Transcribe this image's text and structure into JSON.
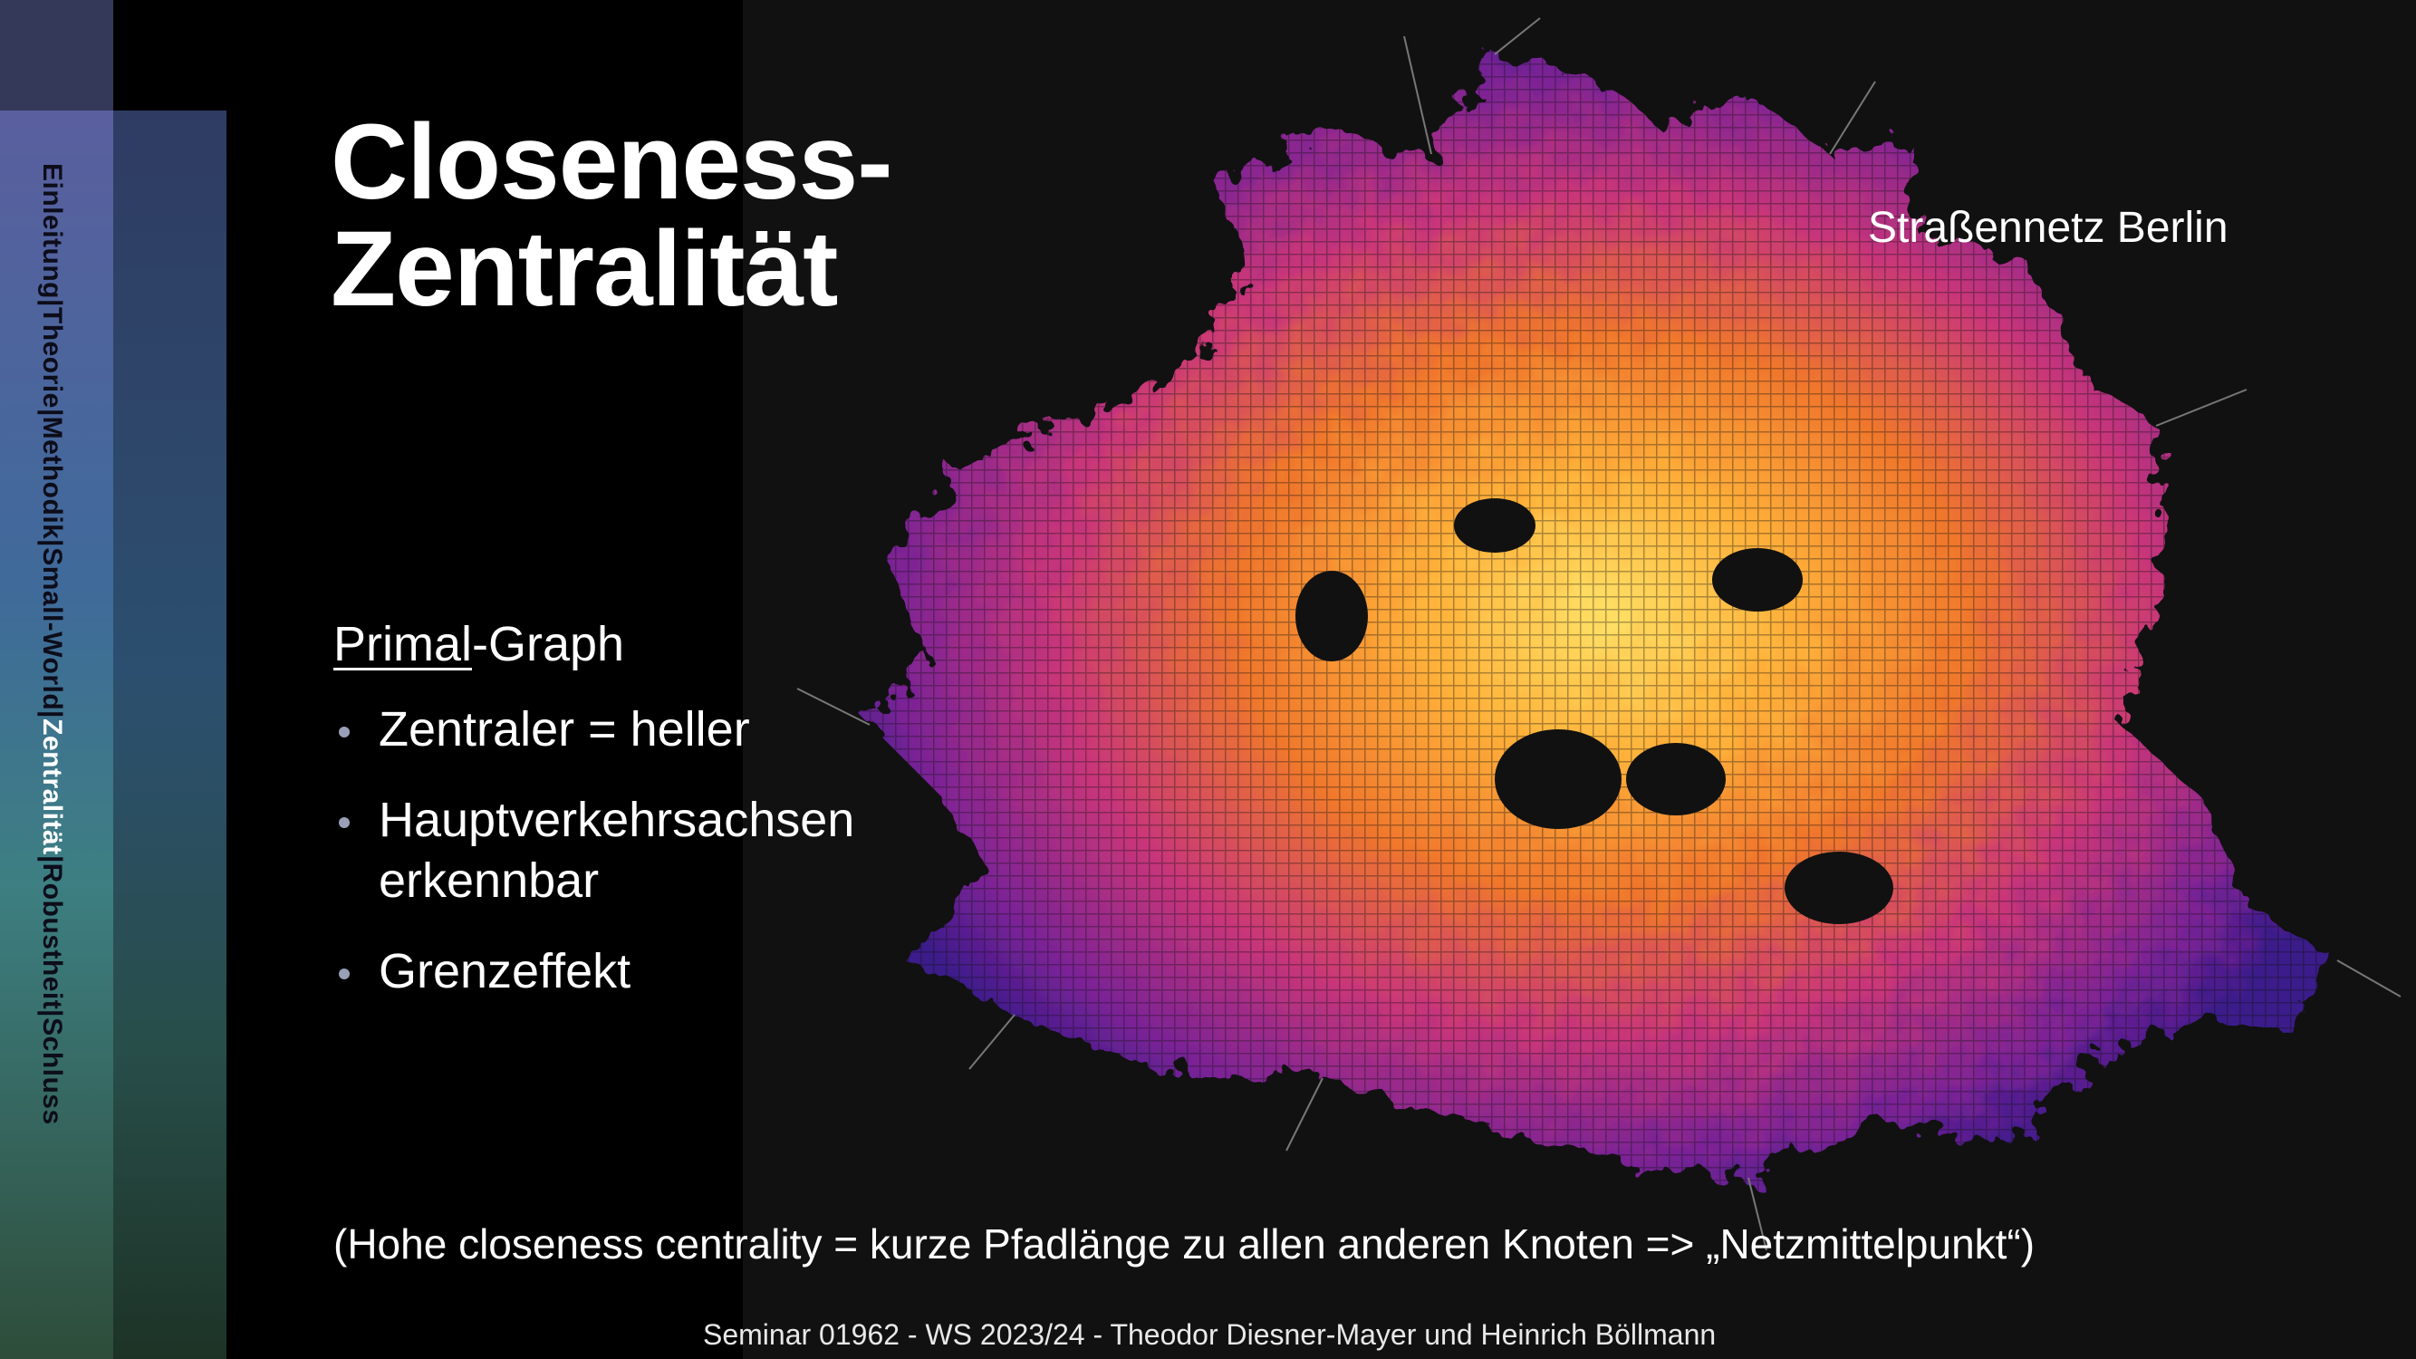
{
  "slide": {
    "title_line1": "Closeness-",
    "title_line2": "Zentralität",
    "map_caption": "Straßennetz Berlin",
    "graph_label_underlined": "Primal",
    "graph_label_rest": "-Graph",
    "bullets": [
      {
        "line1": "Zentraler = heller"
      },
      {
        "line1": "Hauptverkehrsachsen",
        "line2": "erkennbar"
      },
      {
        "line1": "Grenzeffekt"
      }
    ],
    "footnote": "(Hohe closeness centrality = kurze Pfadlänge zu allen anderen Knoten => „Netzmittelpunkt“)",
    "footer": "Seminar 01962 - WS 2023/24 - Theodor Diesner-Mayer und Heinrich Böllmann"
  },
  "navigation": {
    "items": [
      "Einleitung",
      "Theorie",
      "Methodik",
      "Small-World",
      "Zentralität",
      "Robustheit",
      "Schluss"
    ],
    "separator": "|",
    "active": "Zentralität"
  },
  "colors": {
    "map_low": "#3a1a8a",
    "map_mid": "#c8357a",
    "map_high": "#ff9a2e",
    "map_peak": "#ffe066",
    "sidebar": "#4a5a9a"
  },
  "map_image": {
    "description_icon": "berlin-street-network-map"
  }
}
